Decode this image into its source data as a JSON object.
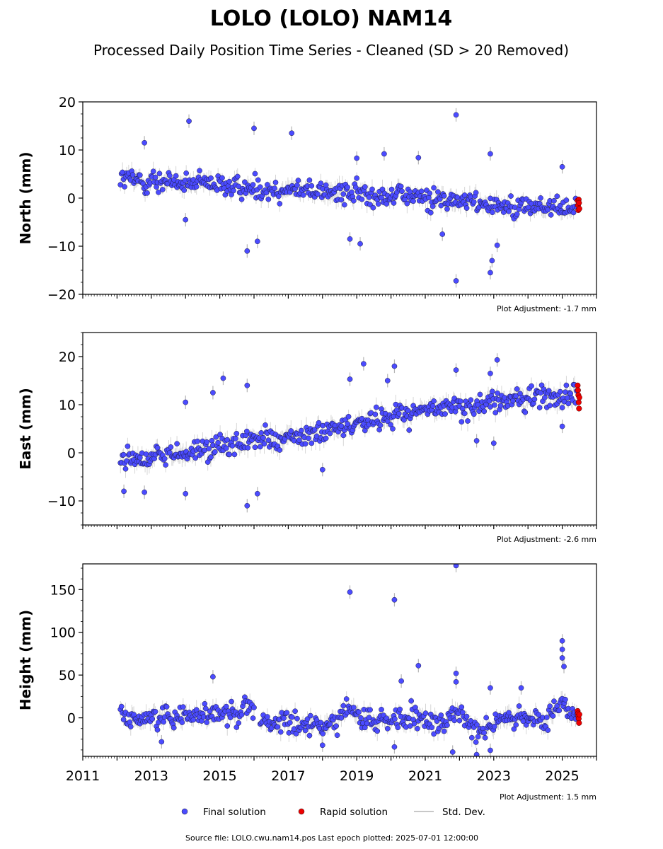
{
  "chart_data": {
    "type": "scatter",
    "title": "LOLO (LOLO) NAM14",
    "subtitle": "Processed Daily Position Time Series - Cleaned (SD > 20 Removed)",
    "xlim": [
      2011,
      2026
    ],
    "xticks": [
      "2011",
      "2013",
      "2015",
      "2017",
      "2019",
      "2021",
      "2023",
      "2025"
    ],
    "grid": false,
    "legend_position": "bottom-center",
    "legend": [
      {
        "label": "Final solution",
        "color": "#4b4bff"
      },
      {
        "label": "Rapid solution",
        "color": "#ee0000"
      },
      {
        "label": "Std. Dev.",
        "color": "#c8c8c8"
      }
    ],
    "footer": "Source file: LOLO.cwu.nam14.pos  Last epoch plotted: 2025-07-01 12:00:00",
    "panels": [
      {
        "ylabel": "North (mm)",
        "ylim": [
          -20,
          20
        ],
        "yticks": [
          "20",
          "10",
          "0",
          "−10",
          "−20"
        ],
        "ytick_values": [
          20,
          10,
          0,
          -10,
          -20
        ],
        "adjustment": "Plot Adjustment: -1.7 mm",
        "trend": [
          [
            2012.1,
            4.0
          ],
          [
            2014.0,
            3.0
          ],
          [
            2016.0,
            2.0
          ],
          [
            2018.0,
            1.5
          ],
          [
            2020.0,
            0.5
          ],
          [
            2022.0,
            -0.5
          ],
          [
            2024.0,
            -2.0
          ],
          [
            2025.4,
            -2.0
          ]
        ],
        "scatter": 1.6,
        "rapid": [
          [
            2025.45,
            -0.5
          ],
          [
            2025.46,
            -1.5
          ],
          [
            2025.47,
            -2.5
          ],
          [
            2025.48,
            -0.3
          ],
          [
            2025.49,
            -1.0
          ],
          [
            2025.5,
            -2.2
          ]
        ],
        "outliers": [
          [
            2012.8,
            11.5
          ],
          [
            2014.1,
            16.0
          ],
          [
            2016.0,
            14.5
          ],
          [
            2017.1,
            13.5
          ],
          [
            2019.0,
            8.3
          ],
          [
            2019.8,
            9.2
          ],
          [
            2020.8,
            8.4
          ],
          [
            2021.9,
            17.3
          ],
          [
            2022.9,
            9.2
          ],
          [
            2025.0,
            6.5
          ],
          [
            2014.0,
            -4.5
          ],
          [
            2015.8,
            -11.0
          ],
          [
            2016.1,
            -9.0
          ],
          [
            2019.1,
            -9.5
          ],
          [
            2021.5,
            -7.5
          ],
          [
            2021.9,
            -17.2
          ],
          [
            2022.9,
            -15.5
          ],
          [
            2022.95,
            -13.0
          ],
          [
            2023.1,
            -9.8
          ],
          [
            2018.8,
            -8.5
          ]
        ]
      },
      {
        "ylabel": "East (mm)",
        "ylim": [
          -15,
          25
        ],
        "yticks": [
          "20",
          "10",
          "0",
          "−10"
        ],
        "ytick_values": [
          20,
          10,
          0,
          -10
        ],
        "adjustment": "Plot Adjustment: -2.6 mm",
        "trend": [
          [
            2012.1,
            -1.5
          ],
          [
            2014.0,
            0.0
          ],
          [
            2016.0,
            2.5
          ],
          [
            2018.0,
            4.0
          ],
          [
            2020.0,
            8.0
          ],
          [
            2022.0,
            9.5
          ],
          [
            2024.0,
            11.5
          ],
          [
            2025.4,
            12.0
          ]
        ],
        "scatter": 1.7,
        "rapid": [
          [
            2025.45,
            14.0
          ],
          [
            2025.46,
            13.0
          ],
          [
            2025.47,
            12.0
          ],
          [
            2025.48,
            10.5
          ],
          [
            2025.49,
            9.2
          ],
          [
            2025.5,
            11.5
          ]
        ],
        "outliers": [
          [
            2012.2,
            -8.0
          ],
          [
            2012.8,
            -8.2
          ],
          [
            2014.0,
            10.5
          ],
          [
            2014.0,
            -8.5
          ],
          [
            2014.8,
            12.5
          ],
          [
            2015.1,
            15.5
          ],
          [
            2015.8,
            14.0
          ],
          [
            2015.8,
            -11.0
          ],
          [
            2016.1,
            -8.5
          ],
          [
            2018.0,
            -3.5
          ],
          [
            2018.8,
            15.3
          ],
          [
            2019.2,
            18.5
          ],
          [
            2019.9,
            15.0
          ],
          [
            2020.1,
            18.0
          ],
          [
            2021.9,
            17.2
          ],
          [
            2022.9,
            16.5
          ],
          [
            2023.1,
            19.3
          ],
          [
            2023.0,
            2.0
          ],
          [
            2025.0,
            5.5
          ],
          [
            2022.5,
            2.5
          ]
        ]
      },
      {
        "ylabel": "Height (mm)",
        "ylim": [
          -45,
          180
        ],
        "yticks": [
          "150",
          "100",
          "50",
          "0"
        ],
        "ytick_values": [
          150,
          100,
          50,
          0
        ],
        "adjustment": "Plot Adjustment: 1.5 mm",
        "trend": [
          [
            2012.1,
            0.0
          ],
          [
            2013.0,
            0.0
          ],
          [
            2014.0,
            5.0
          ],
          [
            2015.5,
            5.0
          ],
          [
            2015.9,
            20.0
          ],
          [
            2016.1,
            -5.0
          ],
          [
            2018.0,
            -10.0
          ],
          [
            2018.8,
            10.0
          ],
          [
            2019.3,
            -5.0
          ],
          [
            2020.5,
            0.0
          ],
          [
            2021.5,
            -10.0
          ],
          [
            2022.0,
            10.0
          ],
          [
            2022.5,
            -15.0
          ],
          [
            2023.5,
            0.0
          ],
          [
            2024.5,
            -5.0
          ],
          [
            2025.0,
            25.0
          ],
          [
            2025.4,
            0.0
          ]
        ],
        "scatter": 9,
        "rapid": [
          [
            2025.45,
            8.0
          ],
          [
            2025.46,
            5.0
          ],
          [
            2025.47,
            2.0
          ],
          [
            2025.48,
            -1.0
          ],
          [
            2025.49,
            -6.0
          ],
          [
            2025.5,
            4.0
          ]
        ],
        "outliers": [
          [
            2014.8,
            48.0
          ],
          [
            2018.8,
            147.0
          ],
          [
            2020.1,
            138.0
          ],
          [
            2020.3,
            43.0
          ],
          [
            2020.8,
            61.0
          ],
          [
            2021.9,
            178.0
          ],
          [
            2021.9,
            52.0
          ],
          [
            2021.9,
            42.0
          ],
          [
            2022.9,
            35.0
          ],
          [
            2023.8,
            35.0
          ],
          [
            2025.0,
            90.0
          ],
          [
            2025.0,
            80.0
          ],
          [
            2025.0,
            70.0
          ],
          [
            2025.05,
            60.0
          ],
          [
            2013.3,
            -28.0
          ],
          [
            2020.1,
            -34.0
          ],
          [
            2021.8,
            -40.0
          ],
          [
            2022.5,
            -43.0
          ],
          [
            2022.9,
            -38.0
          ],
          [
            2018.0,
            -32.0
          ]
        ]
      }
    ]
  }
}
